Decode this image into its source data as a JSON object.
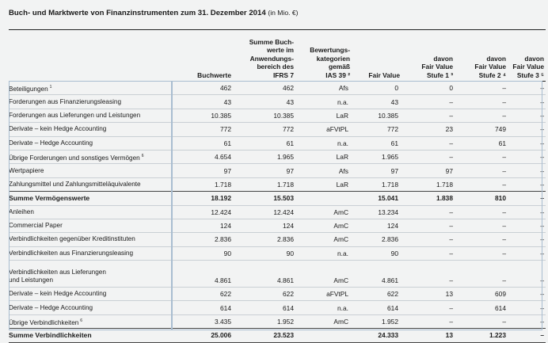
{
  "title": "Buch- und Marktwerte von Finanzinstrumenten zum 31. Dezember 2014",
  "unit": "(in Mio. €)",
  "headers": [
    "",
    "Buchwerte",
    "Summe Buch-\nwerte im\nAnwendungs-\nbereich des\nIFRS 7",
    "Bewertungs-\nkategorien\ngemäß\nIAS 39 ²",
    "Fair Value",
    "davon\nFair Value\nStufe 1 ³",
    "davon\nFair Value\nStufe 2 ⁴",
    "davon\nFair Value\nStufe 3 ⁵"
  ],
  "rows": [
    {
      "label": "Beteiligungen",
      "fn": "1",
      "values": [
        "462",
        "462",
        "Afs",
        "0",
        "0",
        "–",
        "–"
      ]
    },
    {
      "label": "Forderungen aus Finanzierungsleasing",
      "fn": "",
      "values": [
        "43",
        "43",
        "n.a.",
        "43",
        "–",
        "–",
        "–"
      ]
    },
    {
      "label": "Forderungen aus Lieferungen und Leistungen",
      "fn": "",
      "values": [
        "10.385",
        "10.385",
        "LaR",
        "10.385",
        "–",
        "–",
        "–"
      ]
    },
    {
      "label": "Derivate – kein Hedge Accounting",
      "fn": "",
      "values": [
        "772",
        "772",
        "aFVtPL",
        "772",
        "23",
        "749",
        "–"
      ]
    },
    {
      "label": "Derivate – Hedge Accounting",
      "fn": "",
      "values": [
        "61",
        "61",
        "n.a.",
        "61",
        "–",
        "61",
        "–"
      ]
    },
    {
      "label": "Übrige Forderungen und sonstiges Vermögen",
      "fn": "6",
      "values": [
        "4.654",
        "1.965",
        "LaR",
        "1.965",
        "–",
        "–",
        "–"
      ]
    },
    {
      "label": "Wertpapiere",
      "fn": "",
      "values": [
        "97",
        "97",
        "Afs",
        "97",
        "97",
        "–",
        "–"
      ]
    },
    {
      "label": "Zahlungsmittel und Zahlungsmitteläquivalente",
      "fn": "",
      "values": [
        "1.718",
        "1.718",
        "LaR",
        "1.718",
        "1.718",
        "–",
        "–"
      ]
    },
    {
      "label": "Summe Vermögenswerte",
      "fn": "",
      "sum": true,
      "values": [
        "18.192",
        "15.503",
        "",
        "15.041",
        "1.838",
        "810",
        "–"
      ]
    },
    {
      "label": "Anleihen",
      "fn": "",
      "values": [
        "12.424",
        "12.424",
        "AmC",
        "13.234",
        "–",
        "–",
        "–"
      ]
    },
    {
      "label": "Commercial Paper",
      "fn": "",
      "values": [
        "124",
        "124",
        "AmC",
        "124",
        "–",
        "–",
        "–"
      ]
    },
    {
      "label": "Verbindlichkeiten gegenüber Kreditinstituten",
      "fn": "",
      "values": [
        "2.836",
        "2.836",
        "AmC",
        "2.836",
        "–",
        "–",
        "–"
      ]
    },
    {
      "label": "Verbindlichkeiten aus Finanzierungsleasing",
      "fn": "",
      "values": [
        "90",
        "90",
        "n.a.",
        "90",
        "–",
        "–",
        "–"
      ]
    },
    {
      "label": "Verbindlichkeiten aus Lieferungen\nund Leistungen",
      "fn": "",
      "tall": true,
      "values": [
        "4.861",
        "4.861",
        "AmC",
        "4.861",
        "–",
        "–",
        "–"
      ]
    },
    {
      "label": "Derivate – kein Hedge Accounting",
      "fn": "",
      "values": [
        "622",
        "622",
        "aFVtPL",
        "622",
        "13",
        "609",
        "–"
      ]
    },
    {
      "label": "Derivate – Hedge Accounting",
      "fn": "",
      "values": [
        "614",
        "614",
        "n.a.",
        "614",
        "–",
        "614",
        "–"
      ]
    },
    {
      "label": "Übrige Verbindlichkeiten",
      "fn": "6",
      "values": [
        "3.435",
        "1.952",
        "AmC",
        "1.952",
        "–",
        "–",
        "–"
      ]
    },
    {
      "label": "Summe Verbindlichkeiten",
      "fn": "",
      "sum": true,
      "values": [
        "25.006",
        "23.523",
        "",
        "24.333",
        "13",
        "1.223",
        "–"
      ]
    }
  ]
}
